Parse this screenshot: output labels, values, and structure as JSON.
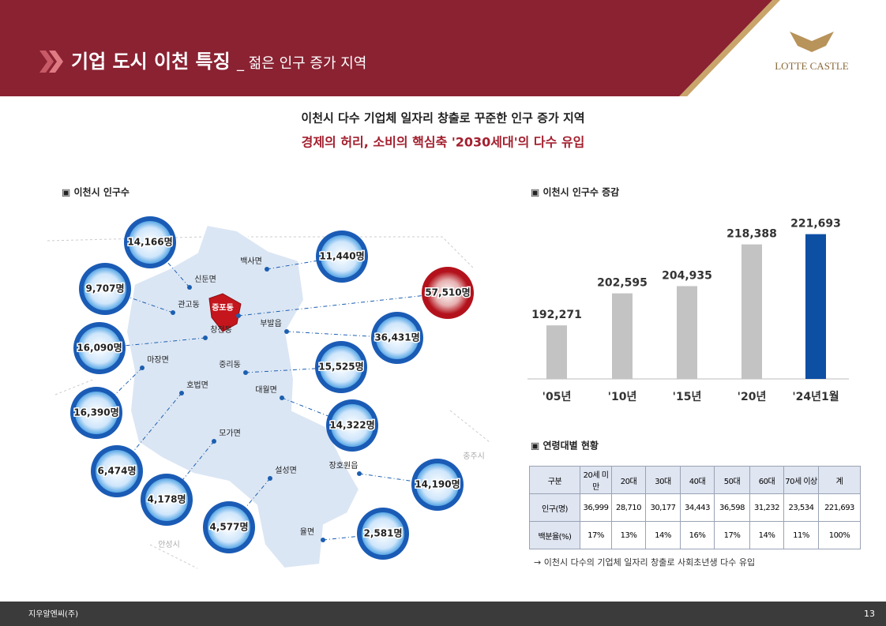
{
  "header": {
    "title": "기업 도시 이천 특징",
    "subtitle": "_ 젊은 인구 증가 지역",
    "brand": "LOTTE CASTLE"
  },
  "headline": {
    "line1": "이천시 다수 기업체 일자리 창출로 꾸준한 인구 증가 지역",
    "line2": "경제의 허리, 소비의 핵심축 '2030세대'의 다수 유입"
  },
  "map": {
    "title": "▣ 이천시 인구수",
    "regions": [
      {
        "name": "신둔면",
        "population": "14,166명"
      },
      {
        "name": "백사면",
        "population": "11,440명"
      },
      {
        "name": "관고동",
        "population": "9,707명"
      },
      {
        "name": "증포동",
        "population": "57,510명"
      },
      {
        "name": "부발읍",
        "population": "36,431명"
      },
      {
        "name": "창전동",
        "population": "16,090명"
      },
      {
        "name": "중리동",
        "population": "15,525명"
      },
      {
        "name": "마장면",
        "population": "16,390명"
      },
      {
        "name": "호법면",
        "population": "6,474명"
      },
      {
        "name": "대월면",
        "population": "14,322명"
      },
      {
        "name": "모가면",
        "population": "4,178명"
      },
      {
        "name": "설성면",
        "population": "4,577명"
      },
      {
        "name": "장호원읍",
        "population": "14,190명"
      },
      {
        "name": "율면",
        "population": "2,581명"
      }
    ],
    "neighbors": [
      "충주시",
      "안성시"
    ]
  },
  "chart_data": {
    "type": "bar",
    "title": "▣ 이천시 인구수 증감",
    "categories": [
      "'05년",
      "'10년",
      "'15년",
      "'20년",
      "'24년1월"
    ],
    "values": [
      192271,
      202595,
      204935,
      218388,
      221693
    ],
    "value_labels": [
      "192,271",
      "202,595",
      "204,935",
      "218,388",
      "221,693"
    ],
    "colors": [
      "#c3c3c3",
      "#c3c3c3",
      "#c3c3c3",
      "#c3c3c3",
      "#0d4fa3"
    ],
    "ylim": [
      175000,
      230000
    ]
  },
  "table": {
    "title": "▣ 연령대별 현황",
    "header": [
      "구분",
      "20세 미만",
      "20대",
      "30대",
      "40대",
      "50대",
      "60대",
      "70세 이상",
      "계"
    ],
    "rows": [
      [
        "인구(명)",
        "36,999",
        "28,710",
        "30,177",
        "34,443",
        "36,598",
        "31,232",
        "23,534",
        "221,693"
      ],
      [
        "백분율(%)",
        "17%",
        "13%",
        "14%",
        "16%",
        "17%",
        "14%",
        "11%",
        "100%"
      ]
    ],
    "note": "→ 이천시 다수의 기업체 일자리 창출로 사회초년생 다수 유입"
  },
  "footer": {
    "company": "지우알엔씨(주)",
    "page": "13"
  }
}
